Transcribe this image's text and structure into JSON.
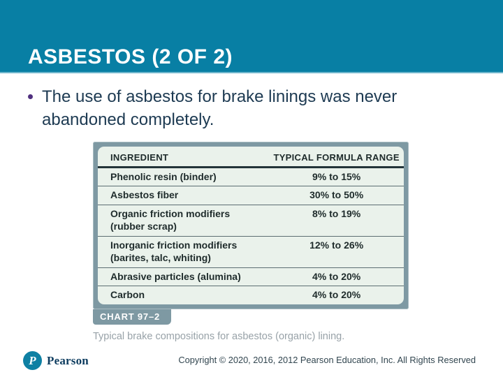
{
  "slide": {
    "title": "ASBESTOS (2 OF 2)",
    "bullet_text": "The use of asbestos for brake linings was never abandoned completely."
  },
  "figure": {
    "table": {
      "headers": [
        "INGREDIENT",
        "TYPICAL FORMULA RANGE"
      ],
      "rows": [
        {
          "name": "Phenolic resin (binder)",
          "sub": "",
          "range": "9% to 15%"
        },
        {
          "name": "Asbestos fiber",
          "sub": "",
          "range": "30% to 50%"
        },
        {
          "name": "Organic friction modifiers",
          "sub": "(rubber scrap)",
          "range": "8% to 19%"
        },
        {
          "name": "Inorganic friction modifiers",
          "sub": "(barites, talc, whiting)",
          "range": "12% to 26%"
        },
        {
          "name": "Abrasive particles (alumina)",
          "sub": "",
          "range": "4% to 20%"
        },
        {
          "name": "Carbon",
          "sub": "",
          "range": "4% to 20%"
        }
      ]
    },
    "chart_label": "CHART 97–2",
    "caption": "Typical brake compositions for asbestos (organic) lining."
  },
  "chart_data": {
    "type": "table",
    "title": "CHART 97–2 — Typical brake compositions for asbestos (organic) lining.",
    "columns": [
      "INGREDIENT",
      "TYPICAL FORMULA RANGE"
    ],
    "rows": [
      [
        "Phenolic resin (binder)",
        "9% to 15%"
      ],
      [
        "Asbestos fiber",
        "30% to 50%"
      ],
      [
        "Organic friction modifiers (rubber scrap)",
        "8% to 19%"
      ],
      [
        "Inorganic friction modifiers (barites, talc, whiting)",
        "12% to 26%"
      ],
      [
        "Abrasive particles (alumina)",
        "4% to 20%"
      ],
      [
        "Carbon",
        "4% to 20%"
      ]
    ]
  },
  "footer": {
    "logo_monogram": "P",
    "logo_text": "Pearson",
    "copyright": "Copyright © 2020, 2016, 2012 Pearson Education, Inc. All Rights Reserved"
  },
  "colors": {
    "header_teal": "#087FA4",
    "header_edge": "#6FB6CC",
    "bullet_text_navy": "#1D3A52",
    "bullet_dot_purple": "#50307F",
    "table_frame_gray_teal": "#7E99A3",
    "table_bg_mint": "#EAF2EB",
    "caption_gray": "#98A2A8",
    "pearson_teal": "#0E80A3",
    "pearson_navy": "#0D3C5F"
  }
}
